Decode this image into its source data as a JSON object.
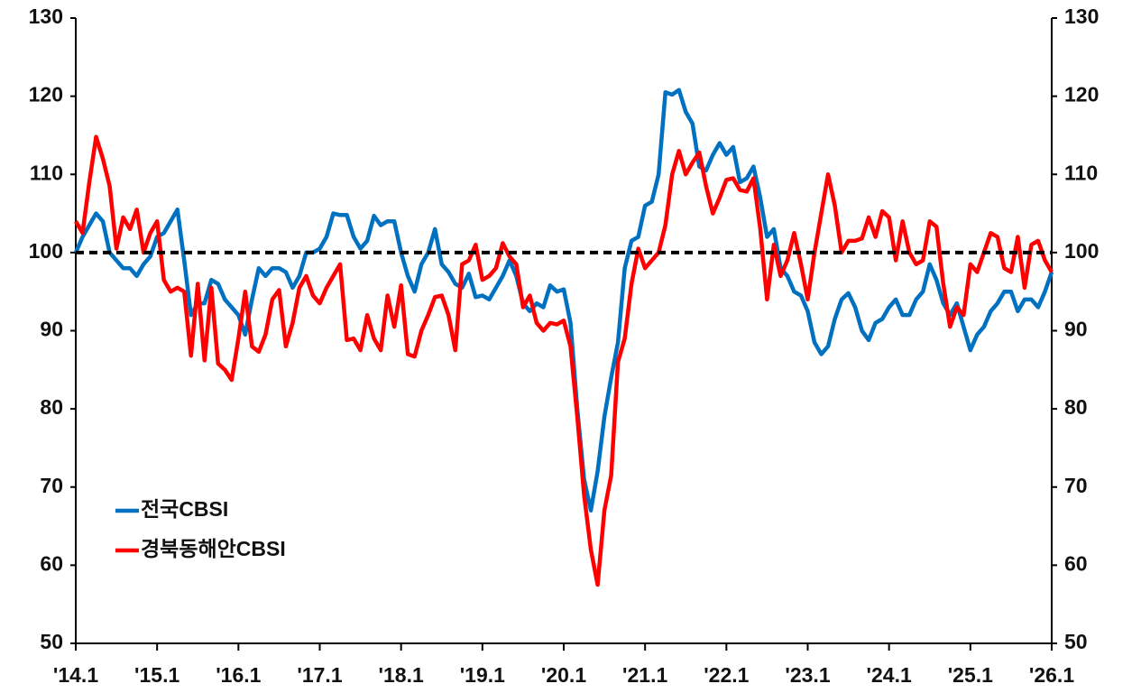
{
  "chart_data": {
    "type": "line",
    "categories": [
      "'14.1",
      null,
      null,
      null,
      null,
      null,
      null,
      null,
      null,
      null,
      null,
      null,
      "'15.1",
      null,
      null,
      null,
      null,
      null,
      null,
      null,
      null,
      null,
      null,
      null,
      "'16.1",
      null,
      null,
      null,
      null,
      null,
      null,
      null,
      null,
      null,
      null,
      null,
      "'17.1",
      null,
      null,
      null,
      null,
      null,
      null,
      null,
      null,
      null,
      null,
      null,
      "'18.1",
      null,
      null,
      null,
      null,
      null,
      null,
      null,
      null,
      null,
      null,
      null,
      "'19.1",
      null,
      null,
      null,
      null,
      null,
      null,
      null,
      null,
      null,
      null,
      null,
      "'20.1",
      null,
      null,
      null,
      null,
      null,
      null,
      null,
      null,
      null,
      null,
      null,
      "'21.1",
      null,
      null,
      null,
      null,
      null,
      null,
      null,
      null,
      null,
      null,
      null,
      "'22.1",
      null,
      null,
      null,
      null,
      null,
      null,
      null,
      null,
      null,
      null,
      null,
      "'23.1",
      null,
      null,
      null,
      null,
      null,
      null,
      null,
      null,
      null,
      null,
      null,
      "'24.1",
      null,
      null,
      null,
      null,
      null,
      null,
      null,
      null,
      null,
      null,
      null,
      "'25.1",
      null,
      null,
      null,
      null,
      null,
      null,
      null,
      null,
      null,
      null,
      null,
      "'26.1"
    ],
    "series": [
      {
        "name": "전국CBSI",
        "color": "#0070c0",
        "values": [
          100,
          102,
          103.5,
          105,
          104,
          100,
          99,
          98,
          98,
          97,
          98.5,
          99.5,
          102,
          102.5,
          104,
          105.5,
          99,
          92,
          93.5,
          93.5,
          96.5,
          96,
          94,
          93,
          92,
          89.5,
          94,
          98,
          97,
          98,
          98,
          97.5,
          95.5,
          97,
          100,
          100,
          100.5,
          102,
          105,
          104.8,
          104.8,
          102,
          100.5,
          101.5,
          104.7,
          103.5,
          104,
          104,
          100,
          97,
          95,
          98.5,
          100,
          103,
          98.5,
          97.5,
          96,
          95.5,
          97.3,
          94.3,
          94.5,
          94,
          95.5,
          97,
          99,
          97,
          93.5,
          92.5,
          93.5,
          93,
          95.8,
          95,
          95.3,
          91,
          80,
          71,
          67,
          72,
          79,
          84,
          88.5,
          98,
          101.5,
          102,
          106,
          106.5,
          110,
          120.5,
          120.2,
          120.8,
          118,
          116.5,
          111,
          110.5,
          112.5,
          114,
          112.5,
          113.5,
          109,
          109.5,
          111,
          107,
          102,
          103,
          98,
          97,
          95,
          94.5,
          92.5,
          88.5,
          87,
          88,
          91.5,
          94,
          94.8,
          93,
          90,
          88.8,
          91,
          91.5,
          93,
          94,
          92,
          92,
          94,
          95,
          98.5,
          96.5,
          93.5,
          92,
          93.5,
          90.5,
          87.5,
          89.5,
          90.5,
          92.5,
          93.5,
          95,
          95,
          92.5,
          94,
          94,
          93,
          95,
          97.5
        ]
      },
      {
        "name": "경북동해안CBSI",
        "color": "#ff0000",
        "values": [
          104,
          102.5,
          109,
          114.8,
          112,
          108.5,
          100.5,
          104.5,
          103,
          105.5,
          100,
          102.5,
          104,
          96.5,
          95,
          95.5,
          95,
          86.8,
          96,
          86.2,
          95.5,
          85.8,
          85,
          83.7,
          89,
          95,
          88,
          87.3,
          89.5,
          94,
          95.2,
          88,
          91,
          95.5,
          97,
          94.5,
          93.5,
          95.5,
          97,
          98.5,
          88.8,
          89,
          87.5,
          92,
          89,
          87.5,
          94.5,
          90.5,
          95.8,
          87,
          86.7,
          90,
          92,
          94.3,
          94.5,
          92,
          87.5,
          98.5,
          99,
          101,
          96.5,
          97,
          98,
          101.2,
          99.5,
          98.5,
          93,
          94.5,
          91,
          90,
          91,
          90.8,
          91.3,
          88,
          79,
          69,
          62,
          57.5,
          67,
          71.5,
          86,
          89,
          96,
          100.5,
          98,
          99,
          100,
          103.5,
          110,
          113,
          110,
          111.5,
          112.8,
          108.5,
          105,
          107,
          109.3,
          109.5,
          108,
          107.8,
          109.5,
          103,
          94,
          101,
          97,
          99,
          102.5,
          98.5,
          94,
          100,
          105,
          110,
          106,
          100,
          101.5,
          101.5,
          101.8,
          104.5,
          102,
          105.3,
          104.5,
          99,
          104,
          100,
          98.5,
          99,
          104,
          103.3,
          96,
          90.5,
          93,
          92,
          98.5,
          97.5,
          100,
          102.5,
          102,
          98,
          97.5,
          102,
          95.5,
          101,
          101.5,
          99,
          97.5
        ]
      }
    ],
    "ylim": [
      50,
      130
    ],
    "yticks": [
      50,
      60,
      70,
      80,
      90,
      100,
      110,
      120,
      130
    ],
    "y2lim": [
      50,
      130
    ],
    "y2ticks": [
      50,
      60,
      70,
      80,
      90,
      100,
      110,
      120,
      130
    ],
    "hline": 100,
    "grid": false,
    "legend": "lower left"
  }
}
